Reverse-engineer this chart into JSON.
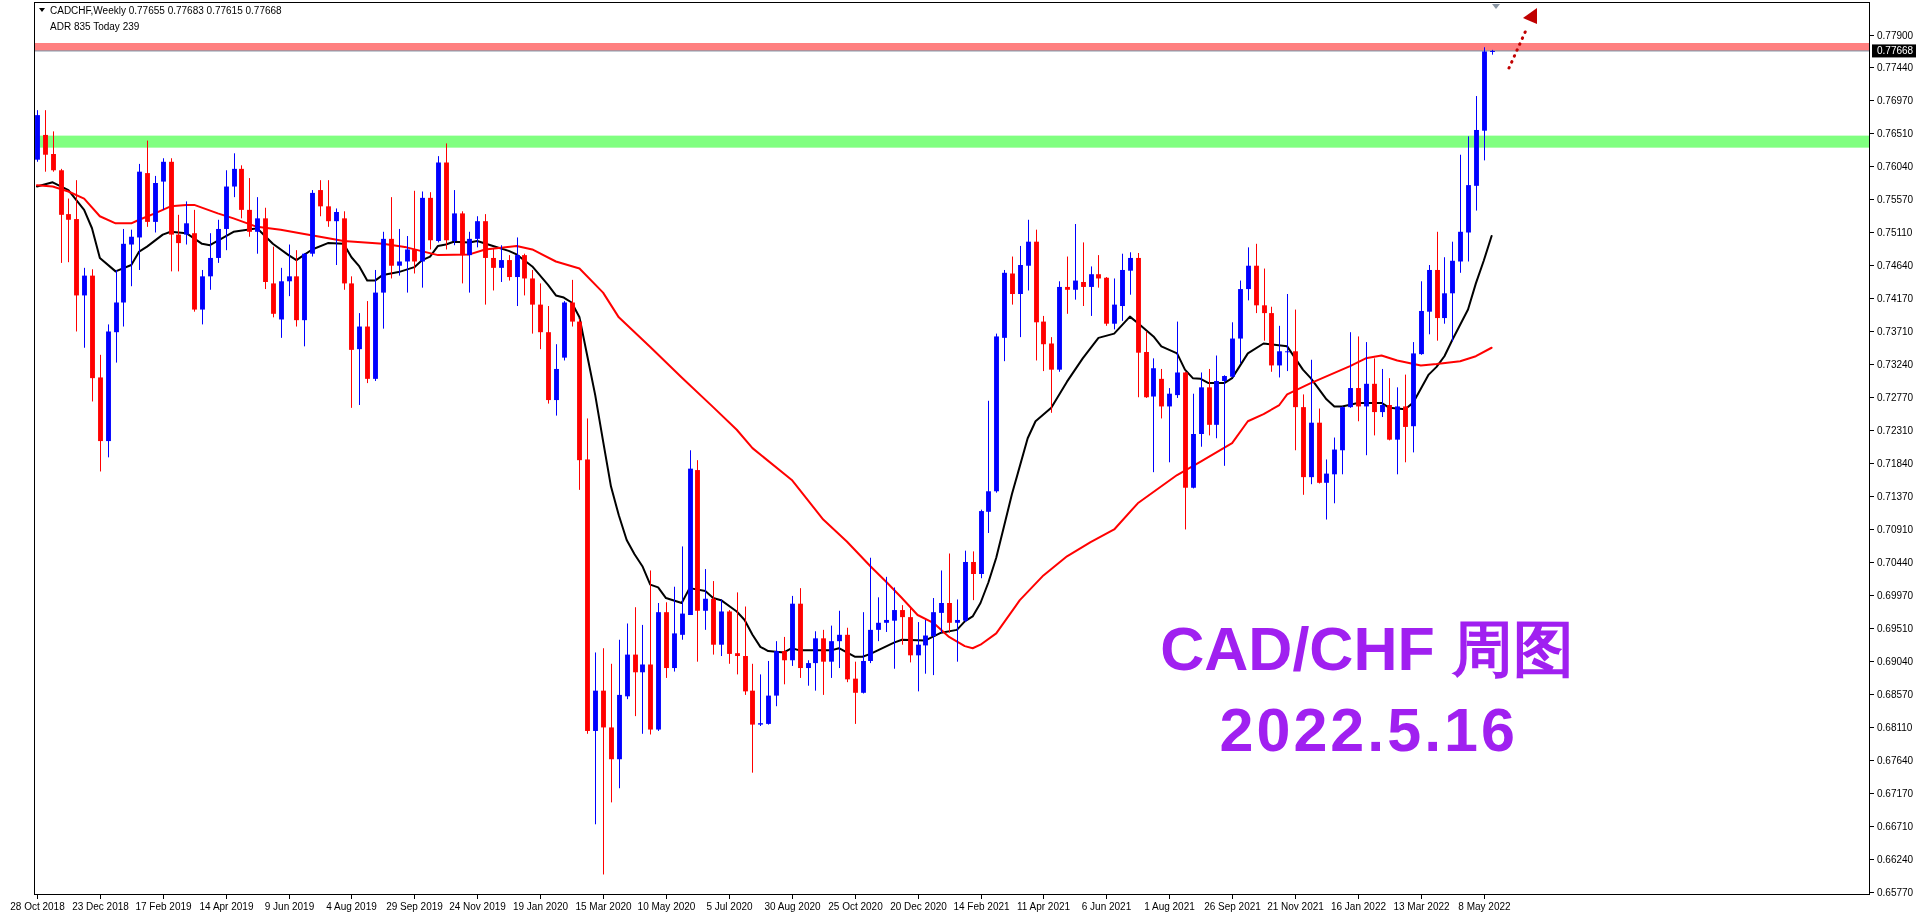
{
  "chart_data": {
    "type": "candlestick",
    "title": "CAD/CHF 周图",
    "subtitle": "2022.5.16",
    "annotations": [
      "CADCHF,Weekly 0.77655 0.77683 0.77615 0.77668",
      "ADR 835 Today 239"
    ],
    "x": [
      "2018-10-28",
      "2018-11-04",
      "2018-11-11",
      "2018-11-18",
      "2018-11-25",
      "2018-12-02",
      "2018-12-09",
      "2018-12-16",
      "2018-12-23",
      "2018-12-30",
      "2019-01-06",
      "2019-01-13",
      "2019-01-20",
      "2019-01-27",
      "2019-02-03",
      "2019-02-10",
      "2019-02-17",
      "2019-02-24",
      "2019-03-03",
      "2019-03-10",
      "2019-03-17",
      "2019-03-24",
      "2019-03-31",
      "2019-04-07",
      "2019-04-14",
      "2019-04-21",
      "2019-04-28",
      "2019-05-05",
      "2019-05-12",
      "2019-05-19",
      "2019-05-26",
      "2019-06-02",
      "2019-06-09",
      "2019-06-16",
      "2019-06-23",
      "2019-06-30",
      "2019-07-07",
      "2019-07-14",
      "2019-07-21",
      "2019-07-28",
      "2019-08-04",
      "2019-08-11",
      "2019-08-18",
      "2019-08-25",
      "2019-09-01",
      "2019-09-08",
      "2019-09-15",
      "2019-09-22",
      "2019-09-29",
      "2019-10-06",
      "2019-10-13",
      "2019-10-20",
      "2019-10-27",
      "2019-11-03",
      "2019-11-10",
      "2019-11-17",
      "2019-11-24",
      "2019-12-01",
      "2019-12-08",
      "2019-12-15",
      "2019-12-22",
      "2019-12-29",
      "2020-01-05",
      "2020-01-12",
      "2020-01-19",
      "2020-01-26",
      "2020-02-02",
      "2020-02-09",
      "2020-02-16",
      "2020-02-23",
      "2020-03-01",
      "2020-03-08",
      "2020-03-15",
      "2020-03-22",
      "2020-03-29",
      "2020-04-05",
      "2020-04-12",
      "2020-04-19",
      "2020-04-26",
      "2020-05-03",
      "2020-05-10",
      "2020-05-17",
      "2020-05-24",
      "2020-05-31",
      "2020-06-07",
      "2020-06-14",
      "2020-06-21",
      "2020-06-28",
      "2020-07-05",
      "2020-07-12",
      "2020-07-19",
      "2020-07-26",
      "2020-08-02",
      "2020-08-09",
      "2020-08-16",
      "2020-08-23",
      "2020-08-30",
      "2020-09-06",
      "2020-09-13",
      "2020-09-20",
      "2020-09-27",
      "2020-10-04",
      "2020-10-11",
      "2020-10-18",
      "2020-10-25",
      "2020-11-01",
      "2020-11-08",
      "2020-11-15",
      "2020-11-22",
      "2020-11-29",
      "2020-12-06",
      "2020-12-13",
      "2020-12-20",
      "2020-12-27",
      "2021-01-03",
      "2021-01-10",
      "2021-01-17",
      "2021-01-24",
      "2021-01-31",
      "2021-02-07",
      "2021-02-14",
      "2021-02-21",
      "2021-02-28",
      "2021-03-07",
      "2021-03-14",
      "2021-03-21",
      "2021-03-28",
      "2021-04-04",
      "2021-04-11",
      "2021-04-18",
      "2021-04-25",
      "2021-05-02",
      "2021-05-09",
      "2021-05-16",
      "2021-05-23",
      "2021-05-30",
      "2021-06-06",
      "2021-06-13",
      "2021-06-20",
      "2021-06-27",
      "2021-07-04",
      "2021-07-11",
      "2021-07-18",
      "2021-07-25",
      "2021-08-01",
      "2021-08-08",
      "2021-08-15",
      "2021-08-22",
      "2021-08-29",
      "2021-09-05",
      "2021-09-12",
      "2021-09-19",
      "2021-09-26",
      "2021-10-03",
      "2021-10-10",
      "2021-10-17",
      "2021-10-24",
      "2021-10-31",
      "2021-11-07",
      "2021-11-14",
      "2021-11-21",
      "2021-11-28",
      "2021-12-05",
      "2021-12-12",
      "2021-12-19",
      "2021-12-26",
      "2022-01-02",
      "2022-01-09",
      "2022-01-16",
      "2022-01-23",
      "2022-01-30",
      "2022-02-06",
      "2022-02-13",
      "2022-02-20",
      "2022-02-27",
      "2022-03-06",
      "2022-03-13",
      "2022-03-20",
      "2022-03-27",
      "2022-04-03",
      "2022-04-10",
      "2022-04-17",
      "2022-04-24",
      "2022-05-01",
      "2022-05-08",
      "2022-05-15"
    ],
    "ohlc": [
      [
        0.7613,
        0.7683,
        0.761,
        0.7676
      ],
      [
        0.7648,
        0.7683,
        0.7596,
        0.762
      ],
      [
        0.7621,
        0.7653,
        0.7596,
        0.7598
      ],
      [
        0.7598,
        0.76,
        0.7467,
        0.7535
      ],
      [
        0.7536,
        0.7558,
        0.7468,
        0.7528
      ],
      [
        0.7529,
        0.7584,
        0.737,
        0.7421
      ],
      [
        0.7421,
        0.746,
        0.7347,
        0.7449
      ],
      [
        0.7449,
        0.7458,
        0.7271,
        0.7304
      ],
      [
        0.7305,
        0.7337,
        0.7172,
        0.7215
      ],
      [
        0.7215,
        0.738,
        0.7192,
        0.737
      ],
      [
        0.7369,
        0.7457,
        0.7326,
        0.7411
      ],
      [
        0.7411,
        0.7515,
        0.7377,
        0.7494
      ],
      [
        0.7493,
        0.7514,
        0.7434,
        0.7504
      ],
      [
        0.7503,
        0.7607,
        0.7457,
        0.7596
      ],
      [
        0.7594,
        0.764,
        0.7518,
        0.7525
      ],
      [
        0.7525,
        0.759,
        0.751,
        0.758
      ],
      [
        0.7582,
        0.7615,
        0.7542,
        0.761
      ],
      [
        0.761,
        0.7615,
        0.7455,
        0.7507
      ],
      [
        0.7507,
        0.7535,
        0.7455,
        0.7495
      ],
      [
        0.7507,
        0.7554,
        0.7493,
        0.7523
      ],
      [
        0.7509,
        0.7542,
        0.7398,
        0.7401
      ],
      [
        0.7401,
        0.7457,
        0.738,
        0.7448
      ],
      [
        0.7448,
        0.7509,
        0.7429,
        0.7474
      ],
      [
        0.7474,
        0.7528,
        0.7467,
        0.7515
      ],
      [
        0.7515,
        0.7598,
        0.7485,
        0.7575
      ],
      [
        0.7575,
        0.7622,
        0.756,
        0.76
      ],
      [
        0.76,
        0.7605,
        0.753,
        0.7542
      ],
      [
        0.7542,
        0.7587,
        0.7504,
        0.7511
      ],
      [
        0.7511,
        0.756,
        0.748,
        0.753
      ],
      [
        0.753,
        0.7545,
        0.743,
        0.744
      ],
      [
        0.7438,
        0.749,
        0.739,
        0.7395
      ],
      [
        0.7387,
        0.746,
        0.7361,
        0.7441
      ],
      [
        0.7441,
        0.7493,
        0.742,
        0.7448
      ],
      [
        0.7448,
        0.7485,
        0.7377,
        0.7386
      ],
      [
        0.7386,
        0.7481,
        0.7349,
        0.748
      ],
      [
        0.748,
        0.757,
        0.7476,
        0.7566
      ],
      [
        0.757,
        0.7584,
        0.7533,
        0.7547
      ],
      [
        0.7547,
        0.7584,
        0.7518,
        0.7526
      ],
      [
        0.7526,
        0.7544,
        0.7464,
        0.7539
      ],
      [
        0.753,
        0.754,
        0.7429,
        0.7438
      ],
      [
        0.7438,
        0.7448,
        0.7262,
        0.7344
      ],
      [
        0.7345,
        0.7396,
        0.7266,
        0.7377
      ],
      [
        0.7377,
        0.7413,
        0.7297,
        0.7303
      ],
      [
        0.7303,
        0.7457,
        0.73,
        0.7425
      ],
      [
        0.7425,
        0.7511,
        0.7374,
        0.7501
      ],
      [
        0.7501,
        0.756,
        0.7445,
        0.7463
      ],
      [
        0.7463,
        0.7515,
        0.7449,
        0.7469
      ],
      [
        0.7469,
        0.7505,
        0.7425,
        0.7486
      ],
      [
        0.7486,
        0.7569,
        0.7452,
        0.7469
      ],
      [
        0.7469,
        0.7568,
        0.7432,
        0.7559
      ],
      [
        0.7559,
        0.7567,
        0.7486,
        0.7499
      ],
      [
        0.7498,
        0.7618,
        0.7496,
        0.7609
      ],
      [
        0.7609,
        0.7636,
        0.7486,
        0.7499
      ],
      [
        0.7498,
        0.757,
        0.7492,
        0.7537
      ],
      [
        0.7537,
        0.754,
        0.7438,
        0.7478
      ],
      [
        0.7478,
        0.7511,
        0.7425,
        0.7501
      ],
      [
        0.7501,
        0.7533,
        0.7489,
        0.7526
      ],
      [
        0.7526,
        0.7536,
        0.7408,
        0.7474
      ],
      [
        0.7474,
        0.7487,
        0.7428,
        0.746
      ],
      [
        0.746,
        0.7492,
        0.744,
        0.7471
      ],
      [
        0.7471,
        0.7478,
        0.7442,
        0.7447
      ],
      [
        0.7447,
        0.7503,
        0.7406,
        0.7478
      ],
      [
        0.7478,
        0.748,
        0.7421,
        0.7445
      ],
      [
        0.7445,
        0.7457,
        0.7367,
        0.7408
      ],
      [
        0.7408,
        0.7438,
        0.7345,
        0.7369
      ],
      [
        0.7369,
        0.7406,
        0.7268,
        0.7273
      ],
      [
        0.7273,
        0.7352,
        0.7251,
        0.7317
      ],
      [
        0.7333,
        0.7413,
        0.7329,
        0.7411
      ],
      [
        0.7411,
        0.7443,
        0.7377,
        0.7384
      ],
      [
        0.7384,
        0.7388,
        0.7146,
        0.7188
      ],
      [
        0.7189,
        0.7247,
        0.6801,
        0.6805
      ],
      [
        0.6805,
        0.6916,
        0.6673,
        0.6862
      ],
      [
        0.6862,
        0.6922,
        0.6602,
        0.681
      ],
      [
        0.681,
        0.69,
        0.6704,
        0.6765
      ],
      [
        0.6765,
        0.6934,
        0.6724,
        0.6856
      ],
      [
        0.6854,
        0.6957,
        0.685,
        0.6913
      ],
      [
        0.6913,
        0.698,
        0.6826,
        0.6888
      ],
      [
        0.6888,
        0.6955,
        0.6801,
        0.6899
      ],
      [
        0.6899,
        0.7032,
        0.68,
        0.6807
      ],
      [
        0.6807,
        0.6986,
        0.6805,
        0.6973
      ],
      [
        0.6973,
        0.6987,
        0.688,
        0.6894
      ],
      [
        0.6894,
        0.7009,
        0.6889,
        0.6943
      ],
      [
        0.6941,
        0.7066,
        0.6934,
        0.6971
      ],
      [
        0.6969,
        0.7202,
        0.6969,
        0.7176
      ],
      [
        0.7174,
        0.7188,
        0.6903,
        0.6975
      ],
      [
        0.6975,
        0.7034,
        0.6948,
        0.6992
      ],
      [
        0.6992,
        0.7017,
        0.6913,
        0.6927
      ],
      [
        0.6927,
        0.6991,
        0.6911,
        0.6974
      ],
      [
        0.6974,
        0.6976,
        0.69,
        0.6914
      ],
      [
        0.6915,
        0.7001,
        0.6885,
        0.6911
      ],
      [
        0.6911,
        0.6981,
        0.6856,
        0.6861
      ],
      [
        0.6862,
        0.69,
        0.6746,
        0.6814
      ],
      [
        0.6814,
        0.6885,
        0.6812,
        0.6816
      ],
      [
        0.6815,
        0.6904,
        0.6814,
        0.6855
      ],
      [
        0.6855,
        0.6932,
        0.684,
        0.6918
      ],
      [
        0.6918,
        0.6938,
        0.6871,
        0.6905
      ],
      [
        0.6905,
        0.6996,
        0.6897,
        0.6985
      ],
      [
        0.6985,
        0.7007,
        0.688,
        0.6894
      ],
      [
        0.6894,
        0.6905,
        0.6869,
        0.6901
      ],
      [
        0.6901,
        0.6946,
        0.6862,
        0.6936
      ],
      [
        0.6936,
        0.6948,
        0.6856,
        0.6903
      ],
      [
        0.6903,
        0.6954,
        0.688,
        0.6932
      ],
      [
        0.6932,
        0.6975,
        0.6894,
        0.6941
      ],
      [
        0.6941,
        0.6951,
        0.6874,
        0.6878
      ],
      [
        0.6879,
        0.6903,
        0.6815,
        0.6859
      ],
      [
        0.6859,
        0.6973,
        0.6858,
        0.6904
      ],
      [
        0.6904,
        0.705,
        0.6901,
        0.6948
      ],
      [
        0.6948,
        0.6994,
        0.6932,
        0.6958
      ],
      [
        0.6958,
        0.7023,
        0.6945,
        0.6962
      ],
      [
        0.6961,
        0.7008,
        0.6893,
        0.6976
      ],
      [
        0.6976,
        0.6983,
        0.6927,
        0.6966
      ],
      [
        0.6966,
        0.6979,
        0.6902,
        0.6912
      ],
      [
        0.6912,
        0.6959,
        0.6861,
        0.6927
      ],
      [
        0.6926,
        0.6962,
        0.6886,
        0.694
      ],
      [
        0.6939,
        0.6993,
        0.6884,
        0.6973
      ],
      [
        0.6972,
        0.7032,
        0.6944,
        0.6986
      ],
      [
        0.6986,
        0.7056,
        0.6944,
        0.6958
      ],
      [
        0.6958,
        0.6991,
        0.6903,
        0.6962
      ],
      [
        0.6961,
        0.706,
        0.6959,
        0.7044
      ],
      [
        0.7044,
        0.7059,
        0.699,
        0.7027
      ],
      [
        0.7027,
        0.7118,
        0.7021,
        0.7116
      ],
      [
        0.7115,
        0.7272,
        0.7085,
        0.7144
      ],
      [
        0.7144,
        0.7367,
        0.7142,
        0.7363
      ],
      [
        0.7361,
        0.7457,
        0.7328,
        0.7453
      ],
      [
        0.7452,
        0.7476,
        0.7408,
        0.7423
      ],
      [
        0.7423,
        0.7491,
        0.7362,
        0.7464
      ],
      [
        0.7463,
        0.7528,
        0.7428,
        0.7497
      ],
      [
        0.7497,
        0.7514,
        0.7329,
        0.7383
      ],
      [
        0.7384,
        0.7392,
        0.7314,
        0.7352
      ],
      [
        0.7353,
        0.7362,
        0.7255,
        0.7316
      ],
      [
        0.7316,
        0.7441,
        0.7313,
        0.7433
      ],
      [
        0.7433,
        0.7476,
        0.7395,
        0.7429
      ],
      [
        0.7429,
        0.7522,
        0.7415,
        0.7442
      ],
      [
        0.744,
        0.7496,
        0.7406,
        0.7433
      ],
      [
        0.7433,
        0.7462,
        0.7392,
        0.7451
      ],
      [
        0.7451,
        0.7478,
        0.7432,
        0.7445
      ],
      [
        0.7446,
        0.7447,
        0.7378,
        0.7381
      ],
      [
        0.7381,
        0.7445,
        0.7373,
        0.7408
      ],
      [
        0.7406,
        0.748,
        0.7385,
        0.7457
      ],
      [
        0.7456,
        0.7482,
        0.7422,
        0.7474
      ],
      [
        0.7474,
        0.7481,
        0.7277,
        0.734
      ],
      [
        0.7341,
        0.737,
        0.7276,
        0.7277
      ],
      [
        0.7278,
        0.7332,
        0.7171,
        0.7318
      ],
      [
        0.7303,
        0.7317,
        0.7247,
        0.7264
      ],
      [
        0.7264,
        0.729,
        0.7185,
        0.7282
      ],
      [
        0.728,
        0.7384,
        0.7276,
        0.7312
      ],
      [
        0.7312,
        0.7313,
        0.709,
        0.7149
      ],
      [
        0.7149,
        0.7282,
        0.7148,
        0.7225
      ],
      [
        0.7225,
        0.7312,
        0.7207,
        0.7291
      ],
      [
        0.7291,
        0.7317,
        0.7223,
        0.7238
      ],
      [
        0.7238,
        0.7336,
        0.7219,
        0.73
      ],
      [
        0.73,
        0.7308,
        0.718,
        0.7307
      ],
      [
        0.7306,
        0.7383,
        0.7305,
        0.736
      ],
      [
        0.736,
        0.7442,
        0.7325,
        0.743
      ],
      [
        0.743,
        0.7489,
        0.7414,
        0.7463
      ],
      [
        0.7463,
        0.7494,
        0.7396,
        0.7407
      ],
      [
        0.7407,
        0.7459,
        0.7357,
        0.7396
      ],
      [
        0.7396,
        0.7405,
        0.7313,
        0.7322
      ],
      [
        0.7322,
        0.7378,
        0.7305,
        0.7342
      ],
      [
        0.7341,
        0.7423,
        0.7314,
        0.7342
      ],
      [
        0.7342,
        0.7401,
        0.7202,
        0.7263
      ],
      [
        0.7263,
        0.7281,
        0.7139,
        0.7164
      ],
      [
        0.7164,
        0.733,
        0.7154,
        0.7241
      ],
      [
        0.7241,
        0.7261,
        0.7155,
        0.7156
      ],
      [
        0.7156,
        0.7189,
        0.7104,
        0.7169
      ],
      [
        0.7168,
        0.722,
        0.7127,
        0.7203
      ],
      [
        0.7202,
        0.7264,
        0.7168,
        0.7263
      ],
      [
        0.7263,
        0.7369,
        0.7262,
        0.729
      ],
      [
        0.729,
        0.7363,
        0.7243,
        0.7264
      ],
      [
        0.7264,
        0.7355,
        0.7195,
        0.7296
      ],
      [
        0.7296,
        0.7332,
        0.7223,
        0.7256
      ],
      [
        0.7256,
        0.7317,
        0.7249,
        0.7266
      ],
      [
        0.7266,
        0.7304,
        0.7216,
        0.7217
      ],
      [
        0.7217,
        0.7291,
        0.7168,
        0.7264
      ],
      [
        0.7264,
        0.7309,
        0.7185,
        0.7235
      ],
      [
        0.7236,
        0.7355,
        0.7199,
        0.7339
      ],
      [
        0.7338,
        0.7441,
        0.7337,
        0.7399
      ],
      [
        0.7398,
        0.7464,
        0.7366,
        0.7457
      ],
      [
        0.7457,
        0.7511,
        0.7357,
        0.7389
      ],
      [
        0.7389,
        0.7475,
        0.7381,
        0.7424
      ],
      [
        0.7424,
        0.7497,
        0.7356,
        0.747
      ],
      [
        0.7469,
        0.762,
        0.7453,
        0.7511
      ],
      [
        0.751,
        0.7646,
        0.7469,
        0.7577
      ],
      [
        0.7576,
        0.7703,
        0.7541,
        0.7655
      ],
      [
        0.7654,
        0.7772,
        0.7612,
        0.7766
      ],
      [
        0.77655,
        0.77683,
        0.77615,
        0.77668
      ]
    ],
    "colors": [
      "#0000ff",
      "#ff0000",
      "#ff0000",
      "#ff0000",
      "#ff0000",
      "#ff0000",
      "#0000ff",
      "#ff0000",
      "#ff0000",
      "#0000ff",
      "#0000ff",
      "#0000ff",
      "#0000ff",
      "#0000ff",
      "#ff0000",
      "#0000ff",
      "#0000ff",
      "#ff0000",
      "#ff0000",
      "#0000ff",
      "#ff0000",
      "#0000ff",
      "#0000ff",
      "#0000ff",
      "#0000ff",
      "#0000ff",
      "#ff0000",
      "#ff0000",
      "#0000ff",
      "#ff0000",
      "#ff0000",
      "#0000ff",
      "#0000ff",
      "#ff0000",
      "#0000ff",
      "#0000ff",
      "#ff0000",
      "#ff0000",
      "#0000ff",
      "#ff0000",
      "#ff0000",
      "#0000ff",
      "#ff0000",
      "#0000ff",
      "#0000ff",
      "#ff0000",
      "#0000ff",
      "#0000ff",
      "#ff0000",
      "#0000ff",
      "#ff0000",
      "#0000ff",
      "#ff0000",
      "#0000ff",
      "#ff0000",
      "#0000ff",
      "#0000ff",
      "#ff0000",
      "#ff0000",
      "#0000ff",
      "#ff0000",
      "#0000ff",
      "#ff0000",
      "#ff0000",
      "#ff0000",
      "#ff0000",
      "#0000ff",
      "#0000ff",
      "#ff0000",
      "#ff0000",
      "#ff0000",
      "#0000ff",
      "#ff0000",
      "#ff0000",
      "#0000ff",
      "#0000ff",
      "#ff0000",
      "#0000ff",
      "#ff0000",
      "#0000ff",
      "#ff0000",
      "#0000ff",
      "#0000ff",
      "#0000ff",
      "#ff0000",
      "#0000ff",
      "#ff0000",
      "#0000ff",
      "#ff0000",
      "#ff0000",
      "#ff0000",
      "#ff0000",
      "#0000ff",
      "#0000ff",
      "#0000ff",
      "#ff0000",
      "#0000ff",
      "#ff0000",
      "#0000ff",
      "#0000ff",
      "#ff0000",
      "#0000ff",
      "#0000ff",
      "#ff0000",
      "#ff0000",
      "#0000ff",
      "#0000ff",
      "#0000ff",
      "#0000ff",
      "#0000ff",
      "#ff0000",
      "#ff0000",
      "#0000ff",
      "#0000ff",
      "#0000ff",
      "#0000ff",
      "#ff0000",
      "#0000ff",
      "#0000ff",
      "#ff0000",
      "#0000ff",
      "#0000ff",
      "#0000ff",
      "#0000ff",
      "#ff0000",
      "#0000ff",
      "#0000ff",
      "#ff0000",
      "#ff0000",
      "#ff0000",
      "#0000ff",
      "#ff0000",
      "#0000ff",
      "#ff0000",
      "#0000ff",
      "#ff0000",
      "#ff0000",
      "#0000ff",
      "#0000ff",
      "#0000ff",
      "#ff0000",
      "#ff0000",
      "#0000ff",
      "#ff0000",
      "#0000ff",
      "#0000ff",
      "#ff0000",
      "#0000ff",
      "#0000ff",
      "#ff0000",
      "#0000ff",
      "#0000ff",
      "#0000ff",
      "#0000ff",
      "#0000ff",
      "#ff0000",
      "#ff0000",
      "#ff0000",
      "#0000ff",
      "#0000ff",
      "#ff0000",
      "#ff0000",
      "#0000ff",
      "#ff0000",
      "#0000ff",
      "#0000ff",
      "#0000ff",
      "#0000ff",
      "#ff0000",
      "#0000ff",
      "#ff0000",
      "#0000ff",
      "#ff0000",
      "#0000ff",
      "#ff0000",
      "#0000ff",
      "#0000ff",
      "#0000ff",
      "#ff0000",
      "#0000ff",
      "#0000ff",
      "#0000ff",
      "#0000ff",
      "#0000ff",
      "#0000ff",
      "#0000ff"
    ],
    "series": [
      {
        "type": "line",
        "color": "#000000",
        "x": [
          "2018-10-28",
          "2018-11-11",
          "2018-11-25",
          "2018-12-09",
          "2018-12-16",
          "2018-12-23",
          "2019-01-06",
          "2019-01-20",
          "2019-01-27",
          "2019-02-03",
          "2019-02-17",
          "2019-02-24",
          "2019-03-10",
          "2019-03-24",
          "2019-03-31",
          "2019-04-21",
          "2019-05-12",
          "2019-05-26",
          "2019-06-09",
          "2019-06-16",
          "2019-06-30",
          "2019-07-14",
          "2019-07-28",
          "2019-08-04",
          "2019-08-11",
          "2019-08-18",
          "2019-08-25",
          "2019-09-01",
          "2019-09-15",
          "2019-09-29",
          "2019-10-06",
          "2019-10-13",
          "2019-10-20",
          "2019-10-27",
          "2019-11-03",
          "2019-11-17",
          "2019-11-24",
          "2019-12-08",
          "2019-12-22",
          "2019-12-29",
          "2020-01-12",
          "2020-01-26",
          "2020-02-02",
          "2020-02-09",
          "2020-02-16",
          "2020-02-23",
          "2020-03-01",
          "2020-03-08",
          "2020-03-15",
          "2020-03-22",
          "2020-03-29",
          "2020-04-05",
          "2020-04-12",
          "2020-04-19",
          "2020-04-26",
          "2020-05-03",
          "2020-05-10",
          "2020-05-24",
          "2020-05-31",
          "2020-06-14",
          "2020-06-21",
          "2020-06-28",
          "2020-07-12",
          "2020-07-19",
          "2020-07-26",
          "2020-08-02",
          "2020-08-09",
          "2020-08-23",
          "2020-08-30",
          "2020-09-06",
          "2020-10-04",
          "2020-10-11",
          "2020-10-18",
          "2020-10-25",
          "2020-11-01",
          "2020-11-08",
          "2020-11-29",
          "2020-12-06",
          "2020-12-27",
          "2021-01-10",
          "2021-01-24",
          "2021-01-31",
          "2021-02-07",
          "2021-02-14",
          "2021-02-21",
          "2021-02-28",
          "2021-03-07",
          "2021-03-14",
          "2021-03-28",
          "2021-04-04",
          "2021-04-18",
          "2021-05-02",
          "2021-05-16",
          "2021-05-30",
          "2021-06-13",
          "2021-06-27",
          "2021-07-04",
          "2021-07-18",
          "2021-07-25",
          "2021-08-08",
          "2021-08-15",
          "2021-08-22",
          "2021-08-29",
          "2021-09-05",
          "2021-09-19",
          "2021-09-26",
          "2021-10-10",
          "2021-10-24",
          "2021-11-14",
          "2021-11-28",
          "2021-12-05",
          "2021-12-19",
          "2021-12-26",
          "2022-01-02",
          "2022-01-16",
          "2022-02-06",
          "2022-02-13",
          "2022-02-27",
          "2022-03-06",
          "2022-03-20",
          "2022-03-27",
          "2022-04-03",
          "2022-04-10",
          "2022-04-24",
          "2022-05-01",
          "2022-05-08",
          "2022-05-15"
        ],
        "values": [
          0.7575,
          0.7581,
          0.757,
          0.7542,
          0.7516,
          0.7474,
          0.7455,
          0.7464,
          0.7483,
          0.749,
          0.7507,
          0.7511,
          0.7509,
          0.7494,
          0.7492,
          0.7511,
          0.7516,
          0.7494,
          0.7478,
          0.7471,
          0.7486,
          0.7495,
          0.7494,
          0.7475,
          0.7462,
          0.7442,
          0.7442,
          0.745,
          0.7454,
          0.7461,
          0.7471,
          0.7476,
          0.7491,
          0.7493,
          0.7497,
          0.7496,
          0.7498,
          0.7491,
          0.7484,
          0.7479,
          0.7462,
          0.7436,
          0.7421,
          0.7418,
          0.7411,
          0.739,
          0.7335,
          0.728,
          0.7215,
          0.7151,
          0.711,
          0.7075,
          0.7055,
          0.7038,
          0.7012,
          0.7008,
          0.6993,
          0.6986,
          0.7007,
          0.7003,
          0.6993,
          0.699,
          0.6974,
          0.6962,
          0.6941,
          0.6924,
          0.6918,
          0.6916,
          0.6922,
          0.6919,
          0.6919,
          0.6922,
          0.6916,
          0.691,
          0.691,
          0.6914,
          0.693,
          0.6934,
          0.6933,
          0.6944,
          0.6948,
          0.696,
          0.6967,
          0.6986,
          0.7015,
          0.705,
          0.7095,
          0.714,
          0.7219,
          0.7243,
          0.7262,
          0.7299,
          0.7332,
          0.7361,
          0.7367,
          0.7391,
          0.7382,
          0.7363,
          0.7349,
          0.7339,
          0.7316,
          0.7304,
          0.7303,
          0.7297,
          0.7297,
          0.7304,
          0.7339,
          0.7353,
          0.7349,
          0.7316,
          0.7304,
          0.7274,
          0.7264,
          0.7264,
          0.7269,
          0.7269,
          0.7262,
          0.726,
          0.7269,
          0.7309,
          0.732,
          0.7335,
          0.7358,
          0.7401,
          0.7438,
          0.747,
          0.7505
        ]
      },
      {
        "type": "line",
        "color": "#ff0000",
        "x": [
          "2018-10-28",
          "2018-11-11",
          "2018-11-25",
          "2018-12-09",
          "2018-12-23",
          "2019-01-06",
          "2019-01-20",
          "2019-01-27",
          "2019-02-10",
          "2019-02-24",
          "2019-03-10",
          "2019-03-17",
          "2019-04-07",
          "2019-04-21",
          "2019-05-12",
          "2019-06-02",
          "2019-06-23",
          "2019-07-07",
          "2019-07-28",
          "2019-09-01",
          "2019-09-22",
          "2019-10-20",
          "2019-11-17",
          "2019-12-01",
          "2019-12-29",
          "2020-01-12",
          "2020-02-02",
          "2020-02-23",
          "2020-03-15",
          "2020-03-29",
          "2020-04-26",
          "2020-05-24",
          "2020-06-21",
          "2020-07-12",
          "2020-07-26",
          "2020-08-30",
          "2020-09-27",
          "2020-10-18",
          "2020-11-08",
          "2020-11-22",
          "2020-12-06",
          "2020-12-20",
          "2021-01-03",
          "2021-01-17",
          "2021-01-31",
          "2021-02-07",
          "2021-02-14",
          "2021-02-28",
          "2021-03-21",
          "2021-04-11",
          "2021-05-02",
          "2021-05-23",
          "2021-06-13",
          "2021-07-04",
          "2021-08-08",
          "2021-08-29",
          "2021-09-26",
          "2021-10-10",
          "2021-10-24",
          "2021-11-07",
          "2021-11-14",
          "2021-12-05",
          "2022-01-09",
          "2022-01-23",
          "2022-02-06",
          "2022-02-20",
          "2022-03-13",
          "2022-03-27",
          "2022-04-17",
          "2022-05-01",
          "2022-05-15"
        ],
        "values": [
          0.7577,
          0.7575,
          0.7568,
          0.7558,
          0.7533,
          0.7523,
          0.7523,
          0.7528,
          0.7537,
          0.7547,
          0.7549,
          0.7549,
          0.7537,
          0.753,
          0.7518,
          0.7514,
          0.7508,
          0.7504,
          0.7498,
          0.7494,
          0.7489,
          0.7478,
          0.7479,
          0.7486,
          0.7491,
          0.7486,
          0.7469,
          0.7459,
          0.7425,
          0.739,
          0.7348,
          0.7305,
          0.7263,
          0.7231,
          0.7205,
          0.716,
          0.7104,
          0.7073,
          0.7038,
          0.7016,
          0.6993,
          0.6969,
          0.6958,
          0.6938,
          0.6925,
          0.6922,
          0.6927,
          0.6943,
          0.699,
          0.7025,
          0.7052,
          0.7072,
          0.709,
          0.7127,
          0.7167,
          0.7186,
          0.7212,
          0.7243,
          0.7253,
          0.7266,
          0.7281,
          0.7297,
          0.7321,
          0.7332,
          0.7336,
          0.7329,
          0.7322,
          0.7324,
          0.7328,
          0.7335,
          0.7347
        ]
      }
    ],
    "xlim": [
      "2018-10-25T09:00",
      "2023-04-16T21:00"
    ],
    "xticks": [
      {
        "value": "2018-10-28",
        "label": "28 Oct 2018"
      },
      {
        "value": "2018-12-23",
        "label": "23 Dec 2018"
      },
      {
        "value": "2019-02-17",
        "label": "17 Feb 2019"
      },
      {
        "value": "2019-04-14",
        "label": "14 Apr 2019"
      },
      {
        "value": "2019-06-09",
        "label": "9 Jun 2019"
      },
      {
        "value": "2019-08-04",
        "label": "4 Aug 2019"
      },
      {
        "value": "2019-09-29",
        "label": "29 Sep 2019"
      },
      {
        "value": "2019-11-24",
        "label": "24 Nov 2019"
      },
      {
        "value": "2020-01-19",
        "label": "19 Jan 2020"
      },
      {
        "value": "2020-03-15",
        "label": "15 Mar 2020"
      },
      {
        "value": "2020-05-10",
        "label": "10 May 2020"
      },
      {
        "value": "2020-07-05",
        "label": "5 Jul 2020"
      },
      {
        "value": "2020-08-30",
        "label": "30 Aug 2020"
      },
      {
        "value": "2020-10-25",
        "label": "25 Oct 2020"
      },
      {
        "value": "2020-12-20",
        "label": "20 Dec 2020"
      },
      {
        "value": "2021-02-14",
        "label": "14 Feb 2021"
      },
      {
        "value": "2021-04-11",
        "label": "11 Apr 2021"
      },
      {
        "value": "2021-06-06",
        "label": "6 Jun 2021"
      },
      {
        "value": "2021-08-01",
        "label": "1 Aug 2021"
      },
      {
        "value": "2021-09-26",
        "label": "26 Sep 2021"
      },
      {
        "value": "2021-11-21",
        "label": "21 Nov 2021"
      },
      {
        "value": "2022-01-16",
        "label": "16 Jan 2022"
      },
      {
        "value": "2022-03-13",
        "label": "13 Mar 2022"
      },
      {
        "value": "2022-05-08",
        "label": "8 May 2022"
      }
    ],
    "ylim": [
      0.6573,
      0.7836
    ],
    "yticks": [
      {
        "value": 0.779,
        "label": "0.77900"
      },
      {
        "value": 0.7744,
        "label": "0.77440"
      },
      {
        "value": 0.7697,
        "label": "0.76970"
      },
      {
        "value": 0.7651,
        "label": "0.76510"
      },
      {
        "value": 0.7604,
        "label": "0.76040"
      },
      {
        "value": 0.7557,
        "label": "0.75570"
      },
      {
        "value": 0.7511,
        "label": "0.75110"
      },
      {
        "value": 0.7464,
        "label": "0.74640"
      },
      {
        "value": 0.7417,
        "label": "0.74170"
      },
      {
        "value": 0.7371,
        "label": "0.73710"
      },
      {
        "value": 0.7324,
        "label": "0.73240"
      },
      {
        "value": 0.7277,
        "label": "0.72770"
      },
      {
        "value": 0.7231,
        "label": "0.72310"
      },
      {
        "value": 0.7184,
        "label": "0.71840"
      },
      {
        "value": 0.7137,
        "label": "0.71370"
      },
      {
        "value": 0.7091,
        "label": "0.70910"
      },
      {
        "value": 0.7044,
        "label": "0.70440"
      },
      {
        "value": 0.6997,
        "label": "0.69970"
      },
      {
        "value": 0.6951,
        "label": "0.69510"
      },
      {
        "value": 0.6904,
        "label": "0.69040"
      },
      {
        "value": 0.6857,
        "label": "0.68570"
      },
      {
        "value": 0.6811,
        "label": "0.68110"
      },
      {
        "value": 0.6764,
        "label": "0.67640"
      },
      {
        "value": 0.6717,
        "label": "0.67170"
      },
      {
        "value": 0.6671,
        "label": "0.66710"
      },
      {
        "value": 0.6624,
        "label": "0.66240"
      },
      {
        "value": 0.6577,
        "label": "0.65770"
      }
    ],
    "ref_lines": [
      {
        "axis": "y",
        "value": 0.77668,
        "label": "0.77668",
        "color": "#778899"
      }
    ],
    "bands": [
      {
        "axis": "y",
        "from": 0.763,
        "to": 0.7647,
        "color": "#80ff80"
      },
      {
        "axis": "y",
        "from": 0.7767,
        "to": 0.7778,
        "color": "#ff8080"
      }
    ]
  }
}
